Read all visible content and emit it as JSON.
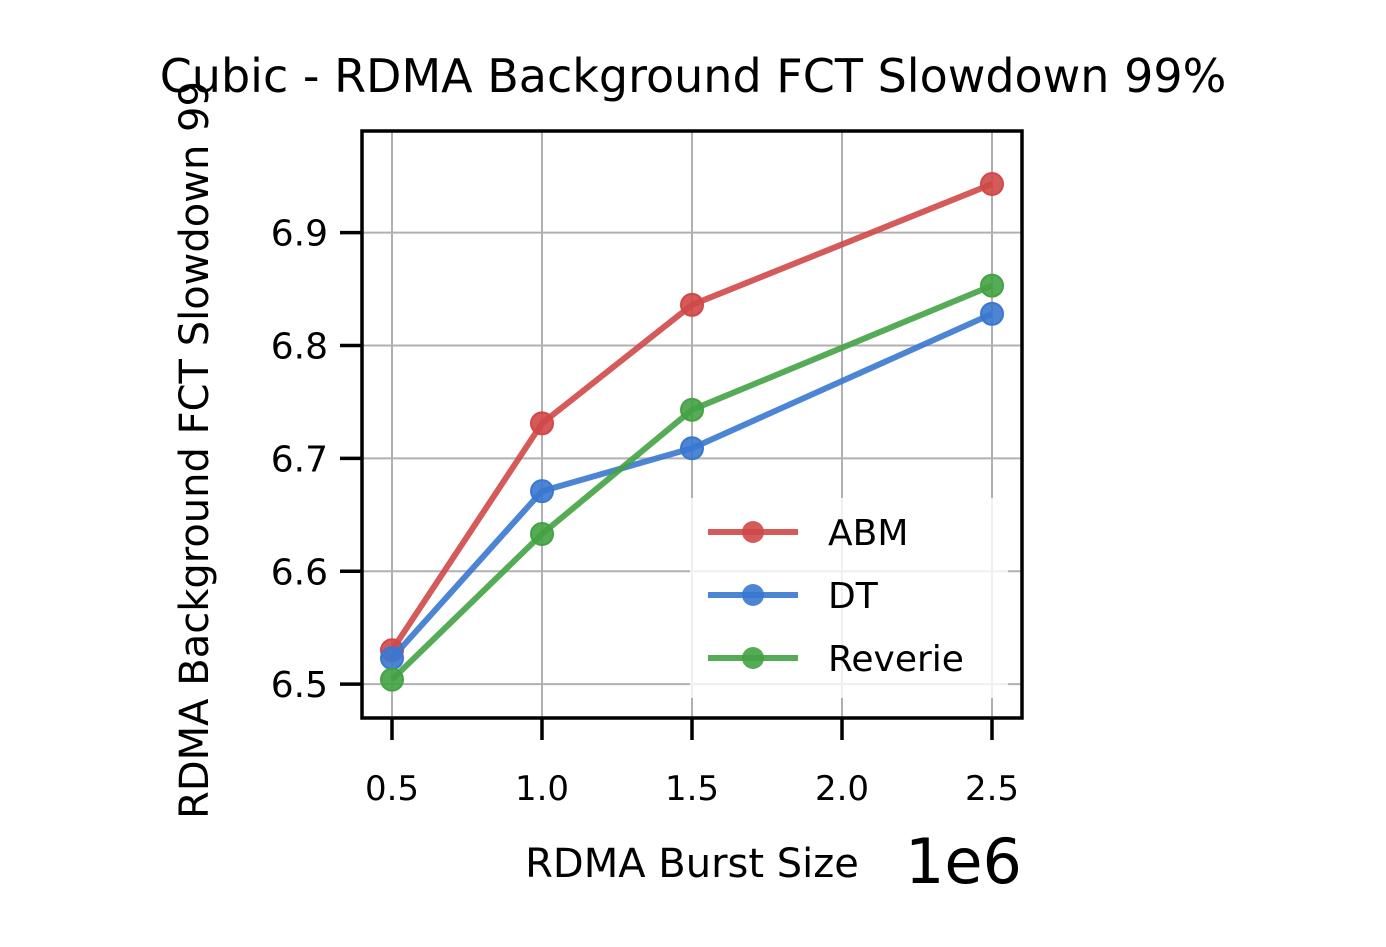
{
  "chart_data": {
    "type": "line",
    "title": "Cubic - RDMA Background FCT Slowdown 99%",
    "xlabel": "RDMA Burst Size",
    "ylabel": "RDMA Background FCT Slowdown 99",
    "x_offset_label": "1e6",
    "x": [
      0.5,
      1.0,
      1.5,
      2.5
    ],
    "xlim": [
      0.4,
      2.6
    ],
    "ylim": [
      6.47,
      6.99
    ],
    "xticks": [
      0.5,
      1.0,
      1.5,
      2.0,
      2.5
    ],
    "xtick_labels": [
      "0.5",
      "1.0",
      "1.5",
      "2.0",
      "2.5"
    ],
    "yticks": [
      6.5,
      6.6,
      6.7,
      6.8,
      6.9
    ],
    "ytick_labels": [
      "6.5",
      "6.6",
      "6.7",
      "6.8",
      "6.9"
    ],
    "grid": true,
    "legend_position": "lower-right",
    "series": [
      {
        "name": "ABM",
        "color": "#d04848",
        "values": [
          6.53,
          6.731,
          6.836,
          6.943
        ]
      },
      {
        "name": "DT",
        "color": "#3a78d0",
        "values": [
          6.523,
          6.671,
          6.709,
          6.828
        ]
      },
      {
        "name": "Reverie",
        "color": "#44a244",
        "values": [
          6.504,
          6.633,
          6.743,
          6.853
        ]
      }
    ]
  }
}
